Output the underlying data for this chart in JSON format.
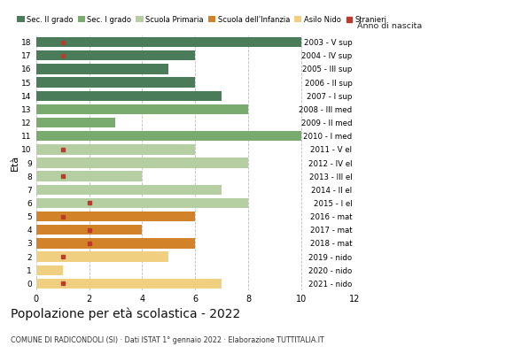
{
  "ages": [
    18,
    17,
    16,
    15,
    14,
    13,
    12,
    11,
    10,
    9,
    8,
    7,
    6,
    5,
    4,
    3,
    2,
    1,
    0
  ],
  "right_labels": [
    "2003 - V sup",
    "2004 - IV sup",
    "2005 - III sup",
    "2006 - II sup",
    "2007 - I sup",
    "2008 - III med",
    "2009 - II med",
    "2010 - I med",
    "2011 - V el",
    "2012 - IV el",
    "2013 - III el",
    "2014 - II el",
    "2015 - I el",
    "2016 - mat",
    "2017 - mat",
    "2018 - mat",
    "2019 - nido",
    "2020 - nido",
    "2021 - nido"
  ],
  "bar_values": [
    10,
    6,
    5,
    6,
    7,
    8,
    3,
    10,
    6,
    8,
    4,
    7,
    8,
    6,
    4,
    6,
    5,
    1,
    7
  ],
  "stranieri_x": [
    1,
    1,
    0,
    0,
    0,
    0,
    0,
    0,
    1,
    0,
    1,
    0,
    2,
    1,
    2,
    2,
    1,
    0,
    1
  ],
  "bar_colors": [
    "#4a7c59",
    "#4a7c59",
    "#4a7c59",
    "#4a7c59",
    "#4a7c59",
    "#7aab6e",
    "#7aab6e",
    "#7aab6e",
    "#b5cfa3",
    "#b5cfa3",
    "#b5cfa3",
    "#b5cfa3",
    "#b5cfa3",
    "#d2832a",
    "#d2832a",
    "#d2832a",
    "#f0d080",
    "#f0d080",
    "#f0d080"
  ],
  "color_sec2": "#4a7c59",
  "color_sec1": "#7aab6e",
  "color_primaria": "#b5cfa3",
  "color_infanzia": "#d2832a",
  "color_nido": "#f0d080",
  "color_stranieri": "#c0392b",
  "xlim": [
    0,
    12
  ],
  "xticks": [
    0,
    2,
    4,
    6,
    8,
    10,
    12
  ],
  "title": "Popolazione per età scolastica - 2022",
  "subtitle": "COMUNE DI RADICONDOLI (SI) · Dati ISTAT 1° gennaio 2022 · Elaborazione TUTTITALIA.IT",
  "ylabel": "Età",
  "right_label_header": "Anno di nascita",
  "legend_labels": [
    "Sec. II grado",
    "Sec. I grado",
    "Scuola Primaria",
    "Scuola dell'Infanzia",
    "Asilo Nido",
    "Stranieri"
  ],
  "bar_height": 0.75,
  "background_color": "#ffffff",
  "grid_color": "#bbbbbb"
}
